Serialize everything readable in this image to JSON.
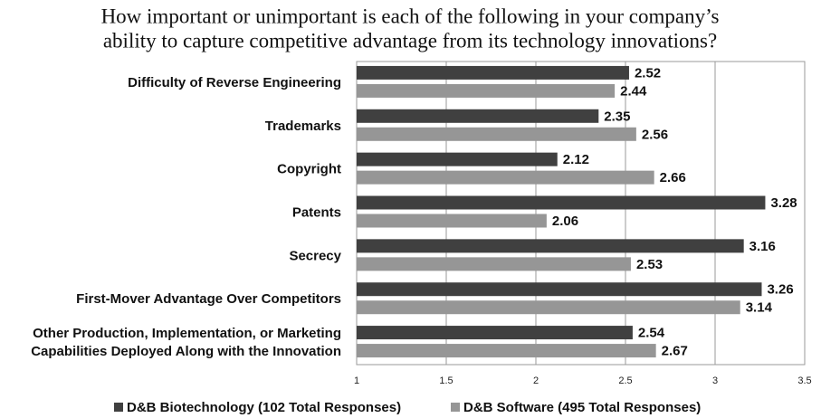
{
  "chart_data": {
    "type": "bar",
    "orientation": "horizontal",
    "title": "How important or unimportant is each of the following in your company’s\nability to capture competitive advantage from its technology innovations?",
    "categories": [
      "Difficulty of Reverse Engineering",
      "Trademarks",
      "Copyright",
      "Patents",
      "Secrecy",
      "First-Mover Advantage Over Competitors",
      "Other Production, Implementation, or Marketing\nCapabilities Deployed Along with the Innovation"
    ],
    "series": [
      {
        "name": "D&B Biotechnology (102 Total Responses)",
        "color": "#404040",
        "values": [
          2.52,
          2.35,
          2.12,
          3.28,
          3.16,
          3.26,
          2.54
        ]
      },
      {
        "name": "D&B Software (495 Total Responses)",
        "color": "#969696",
        "values": [
          2.44,
          2.56,
          2.66,
          2.06,
          2.53,
          3.14,
          2.67
        ]
      }
    ],
    "xlim": [
      1,
      3.5
    ],
    "xticks": [
      1,
      1.5,
      2,
      2.5,
      3,
      3.5
    ],
    "grid": true,
    "legend": "bottom"
  }
}
